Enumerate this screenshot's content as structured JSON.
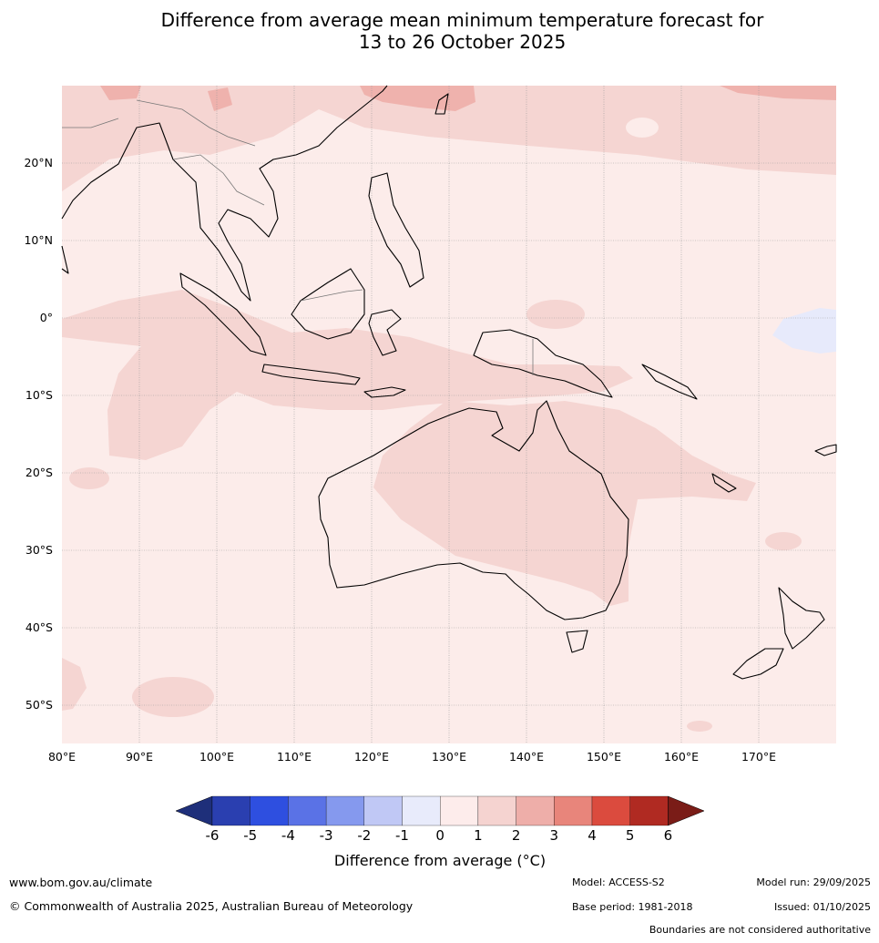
{
  "title": {
    "line1": "Difference from average mean minimum temperature forecast for",
    "line2": "13 to 26 October 2025"
  },
  "axes": {
    "lon_labels": [
      "80°E",
      "90°E",
      "100°E",
      "110°E",
      "120°E",
      "130°E",
      "140°E",
      "150°E",
      "160°E",
      "170°E"
    ],
    "lat_labels": [
      "20°N",
      "10°N",
      "0°",
      "10°S",
      "20°S",
      "30°S",
      "40°S",
      "50°S"
    ],
    "lon_range": [
      80,
      180
    ],
    "lat_range": [
      -55,
      30
    ]
  },
  "colorbar": {
    "label": "Difference from average (°C)",
    "ticks": [
      "-6",
      "-5",
      "-4",
      "-3",
      "-2",
      "-1",
      "0",
      "1",
      "2",
      "3",
      "4",
      "5",
      "6"
    ],
    "colors": [
      "#1e2f7a",
      "#2a3fb0",
      "#2e4fe0",
      "#5a72e6",
      "#8599ee",
      "#c0c8f5",
      "#e8ebfb",
      "#fdeceb",
      "#f5d3d0",
      "#eeaea9",
      "#e8857b",
      "#db4b3e",
      "#b02a22",
      "#7a1c17"
    ]
  },
  "map_colors": {
    "band_0_1": "#fcecea",
    "band_1_2": "#f5d5d2",
    "band_2_3": "#efb2ad",
    "band_neg": "#e7eafb",
    "coast": "#000000",
    "border": "#777777",
    "grid": "#999999"
  },
  "footer": {
    "website": "www.bom.gov.au/climate",
    "copyright": "© Commonwealth of Australia 2025, Australian Bureau of Meteorology",
    "model": "Model: ACCESS-S2",
    "base_period": "Base period: 1981-2018",
    "model_run": "Model run: 29/09/2025",
    "issued": "Issued: 01/10/2025",
    "disclaimer": "Boundaries are not considered authoritative"
  }
}
